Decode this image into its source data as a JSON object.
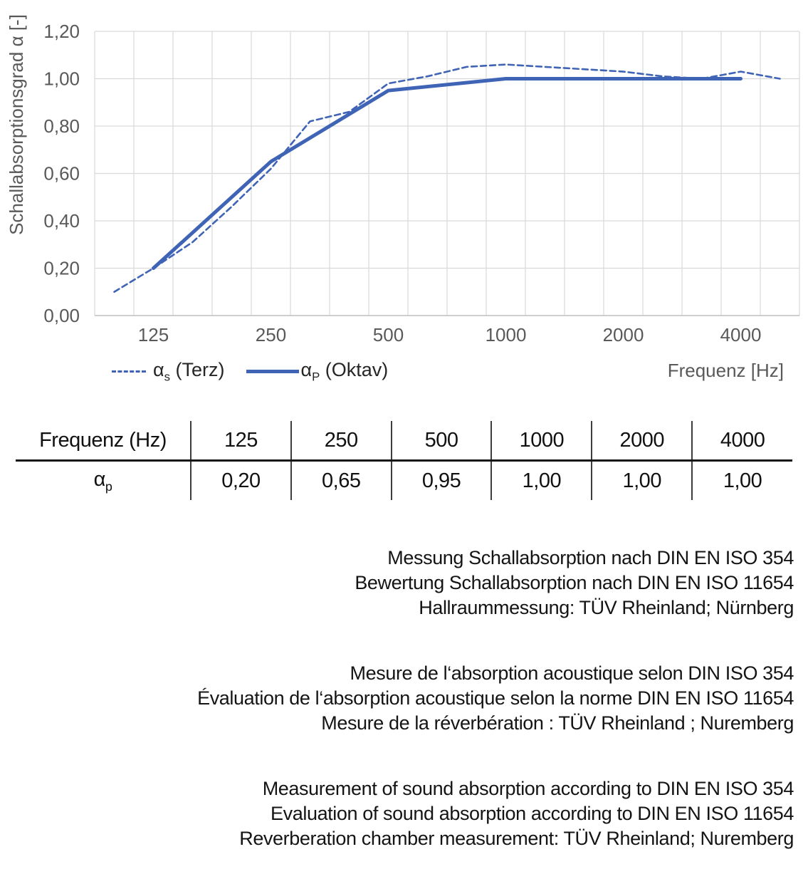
{
  "chart": {
    "y_axis_title": "Schallabsorptionsgrad α [-]",
    "x_axis_title": "Frequenz [Hz]",
    "y_tick_labels": [
      "0,00",
      "0,20",
      "0,40",
      "0,60",
      "0,80",
      "1,00",
      "1,20"
    ],
    "x_tick_labels": [
      "125",
      "250",
      "500",
      "1000",
      "2000",
      "4000"
    ],
    "legend": [
      {
        "alpha": "α",
        "sub": "s",
        "rest": "(Terz)",
        "style": "dashed"
      },
      {
        "alpha": "α",
        "sub": "P",
        "rest": "(Oktav)",
        "style": "solid"
      }
    ]
  },
  "chart_data": {
    "type": "line",
    "title": "",
    "xlabel": "Frequenz [Hz]",
    "ylabel": "Schallabsorptionsgrad α [-]",
    "x_scale": "logarithmic (third-octave bands, equally spaced)",
    "ylim": [
      0,
      1.2
    ],
    "y_tick_step": 0.2,
    "grid": true,
    "legend_position": "bottom-left",
    "categories": [
      100,
      125,
      160,
      200,
      250,
      315,
      400,
      500,
      630,
      800,
      1000,
      1250,
      1600,
      2000,
      2500,
      3150,
      4000,
      5000
    ],
    "series": [
      {
        "name": "αs (Terz)",
        "style": "dashed",
        "color": "#3f63b5",
        "x": [
          100,
          125,
          160,
          200,
          250,
          315,
          400,
          500,
          630,
          800,
          1000,
          1250,
          1600,
          2000,
          2500,
          3150,
          4000,
          5000
        ],
        "values": [
          0.1,
          0.2,
          0.31,
          0.46,
          0.62,
          0.82,
          0.86,
          0.98,
          1.01,
          1.05,
          1.06,
          1.05,
          1.04,
          1.03,
          1.01,
          1.0,
          1.03,
          1.0
        ]
      },
      {
        "name": "αP (Oktav)",
        "style": "solid",
        "color": "#3f63b5",
        "x": [
          125,
          250,
          500,
          1000,
          2000,
          4000
        ],
        "values": [
          0.2,
          0.65,
          0.95,
          1.0,
          1.0,
          1.0
        ]
      }
    ]
  },
  "table": {
    "header": [
      "Frequenz (Hz)",
      "125",
      "250",
      "500",
      "1000",
      "2000",
      "4000"
    ],
    "row_label_base": "α",
    "row_label_sub": "p",
    "values": [
      "0,20",
      "0,65",
      "0,95",
      "1,00",
      "1,00",
      "1,00"
    ]
  },
  "notes": {
    "german": [
      "Messung Schallabsorption nach DIN EN ISO 354",
      "Bewertung Schallabsorption nach DIN EN ISO 11654",
      "Hallraummessung: TÜV Rheinland; Nürnberg"
    ],
    "french": [
      "Mesure de l‘absorption acoustique selon DIN ISO 354",
      "Évaluation de l‘absorption acoustique selon la norme DIN EN ISO 11654",
      "Mesure de la réverbération : TÜV Rheinland ; Nuremberg"
    ],
    "english": [
      "Measurement of sound absorption according to DIN EN ISO 354",
      "Evaluation of sound absorption according to DIN EN ISO 11654",
      "Reverberation chamber measurement: TÜV Rheinland; Nuremberg"
    ]
  },
  "colors": {
    "line_blue": "#3f63b5",
    "gridline": "#d9d9d9",
    "axis_line": "#bfbfbf",
    "tick_text": "#595959",
    "body_text": "#141414"
  }
}
